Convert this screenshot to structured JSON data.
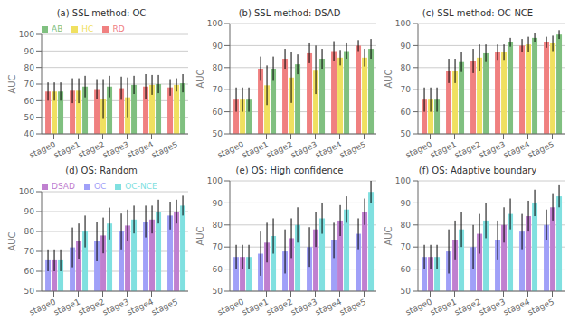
{
  "chart_data": [
    {
      "type": "bar",
      "title": "(a)  SSL method: OC",
      "categories": [
        "stage0",
        "stage1",
        "stage2",
        "stage3",
        "stage4",
        "stage5"
      ],
      "series": [
        {
          "name": "RD",
          "color": "#F08080",
          "values": [
            65.5,
            66.0,
            67.0,
            67.5,
            68.5,
            68.0
          ],
          "errors": [
            5.5,
            7.5,
            6.0,
            7.0,
            7.5,
            5.0
          ]
        },
        {
          "name": "HC",
          "color": "#F0E060",
          "values": [
            65.5,
            66.0,
            61.0,
            62.0,
            69.5,
            69.5
          ],
          "errors": [
            5.5,
            7.5,
            12.0,
            12.0,
            6.0,
            4.0
          ]
        },
        {
          "name": "AB",
          "color": "#80C080",
          "values": [
            65.5,
            68.5,
            68.5,
            69.5,
            70.0,
            70.5
          ],
          "errors": [
            5.5,
            6.5,
            6.5,
            5.5,
            5.5,
            5.5
          ]
        }
      ],
      "y_label": "AUC",
      "ylim": [
        40,
        100
      ],
      "yticks": [
        40,
        50,
        60,
        70,
        80,
        90,
        100
      ],
      "grid": true,
      "legend": "upper left"
    },
    {
      "type": "bar",
      "title": "(b)  SSL method: DSAD",
      "categories": [
        "stage0",
        "stage1",
        "stage2",
        "stage3",
        "stage4",
        "stage5"
      ],
      "series": [
        {
          "name": "RD",
          "color": "#F08080",
          "values": [
            65.5,
            79.5,
            84.0,
            86.5,
            87.5,
            90.0
          ],
          "errors": [
            5.5,
            5.5,
            4.5,
            4.5,
            4.5,
            2.5
          ]
        },
        {
          "name": "HC",
          "color": "#F0E060",
          "values": [
            65.5,
            72.0,
            75.5,
            79.0,
            84.5,
            84.5
          ],
          "errors": [
            5.5,
            9.0,
            11.5,
            11.0,
            3.5,
            4.0
          ]
        },
        {
          "name": "AB",
          "color": "#80C080",
          "values": [
            65.5,
            79.5,
            81.5,
            84.0,
            87.5,
            88.5
          ],
          "errors": [
            5.5,
            5.5,
            4.5,
            4.5,
            3.5,
            4.5
          ]
        }
      ],
      "y_label": "AUC",
      "ylim": [
        50,
        100
      ],
      "yticks": [
        50,
        60,
        70,
        80,
        90,
        100
      ],
      "grid": true
    },
    {
      "type": "bar",
      "title": "(c)  SSL method: OC-NCE",
      "categories": [
        "stage0",
        "stage1",
        "stage2",
        "stage3",
        "stage4",
        "stage5"
      ],
      "series": [
        {
          "name": "RD",
          "color": "#F08080",
          "values": [
            65.5,
            78.5,
            83.0,
            87.0,
            90.0,
            91.5
          ],
          "errors": [
            5.5,
            5.5,
            5.5,
            3.5,
            3.0,
            2.5
          ]
        },
        {
          "name": "HC",
          "color": "#F0E060",
          "values": [
            65.5,
            78.5,
            84.5,
            87.0,
            90.5,
            91.0
          ],
          "errors": [
            5.5,
            5.5,
            6.0,
            3.5,
            3.5,
            3.5
          ]
        },
        {
          "name": "AB",
          "color": "#80C080",
          "values": [
            65.5,
            82.5,
            86.5,
            91.5,
            93.5,
            95.0
          ],
          "errors": [
            5.5,
            4.5,
            4.0,
            2.0,
            2.0,
            2.0
          ]
        }
      ],
      "y_label": "AUC",
      "ylim": [
        50,
        100
      ],
      "yticks": [
        50,
        60,
        70,
        80,
        90,
        100
      ],
      "grid": true
    },
    {
      "type": "bar",
      "title": "(d)  QS: Random",
      "categories": [
        "stage0",
        "stage1",
        "stage2",
        "stage3",
        "stage4",
        "stage5"
      ],
      "series": [
        {
          "name": "OC",
          "color": "#A0A0F8",
          "values": [
            65.5,
            72.0,
            75.0,
            80.0,
            85.0,
            88.0
          ],
          "errors": [
            5.5,
            10.0,
            10.0,
            9.0,
            8.0,
            7.0
          ]
        },
        {
          "name": "DSAD",
          "color": "#C080D0",
          "values": [
            65.5,
            75.0,
            78.0,
            83.0,
            86.0,
            90.0
          ],
          "errors": [
            5.5,
            9.0,
            9.0,
            8.0,
            7.0,
            6.0
          ]
        },
        {
          "name": "OC-NCE",
          "color": "#80E0E0",
          "values": [
            65.5,
            80.0,
            84.0,
            86.0,
            90.0,
            93.0
          ],
          "errors": [
            5.5,
            8.0,
            8.0,
            7.0,
            6.0,
            5.0
          ]
        }
      ],
      "y_label": "AUC",
      "ylim": [
        50,
        100
      ],
      "yticks": [
        50,
        60,
        70,
        80,
        90,
        100
      ],
      "grid": true,
      "legend": "upper left"
    },
    {
      "type": "bar",
      "title": "(e)  QS: High confidence",
      "categories": [
        "stage0",
        "stage1",
        "stage2",
        "stage3",
        "stage4",
        "stage5"
      ],
      "series": [
        {
          "name": "OC",
          "color": "#A0A0F8",
          "values": [
            65.5,
            67.0,
            68.0,
            70.0,
            73.0,
            76.0
          ],
          "errors": [
            5.5,
            10.0,
            10.0,
            9.0,
            8.0,
            7.0
          ]
        },
        {
          "name": "DSAD",
          "color": "#C080D0",
          "values": [
            65.5,
            72.0,
            74.0,
            78.0,
            82.0,
            86.0
          ],
          "errors": [
            5.5,
            9.0,
            9.0,
            8.0,
            7.0,
            6.0
          ]
        },
        {
          "name": "OC-NCE",
          "color": "#80E0E0",
          "values": [
            65.5,
            75.0,
            80.0,
            83.0,
            87.0,
            95.0
          ],
          "errors": [
            5.5,
            8.0,
            8.0,
            7.0,
            6.0,
            5.0
          ]
        }
      ],
      "y_label": "AUC",
      "ylim": [
        50,
        100
      ],
      "yticks": [
        50,
        60,
        70,
        80,
        90,
        100
      ],
      "grid": true
    },
    {
      "type": "bar",
      "title": "(f)  QS: Adaptive boundary",
      "categories": [
        "stage0",
        "stage1",
        "stage2",
        "stage3",
        "stage4",
        "stage5"
      ],
      "series": [
        {
          "name": "OC",
          "color": "#A0A0F8",
          "values": [
            65.5,
            68.0,
            70.0,
            73.0,
            77.0,
            80.0
          ],
          "errors": [
            5.5,
            10.0,
            10.0,
            9.0,
            8.0,
            7.0
          ]
        },
        {
          "name": "DSAD",
          "color": "#C080D0",
          "values": [
            65.5,
            73.0,
            76.0,
            80.0,
            84.0,
            88.0
          ],
          "errors": [
            5.5,
            9.0,
            9.0,
            8.0,
            7.0,
            6.0
          ]
        },
        {
          "name": "OC-NCE",
          "color": "#80E0E0",
          "values": [
            65.5,
            78.0,
            82.0,
            85.0,
            90.0,
            93.0
          ],
          "errors": [
            5.5,
            8.0,
            8.0,
            7.0,
            6.0,
            5.0
          ]
        }
      ],
      "y_label": "AUC",
      "ylim": [
        50,
        100
      ],
      "yticks": [
        50,
        60,
        70,
        80,
        90,
        100
      ],
      "grid": true
    }
  ]
}
